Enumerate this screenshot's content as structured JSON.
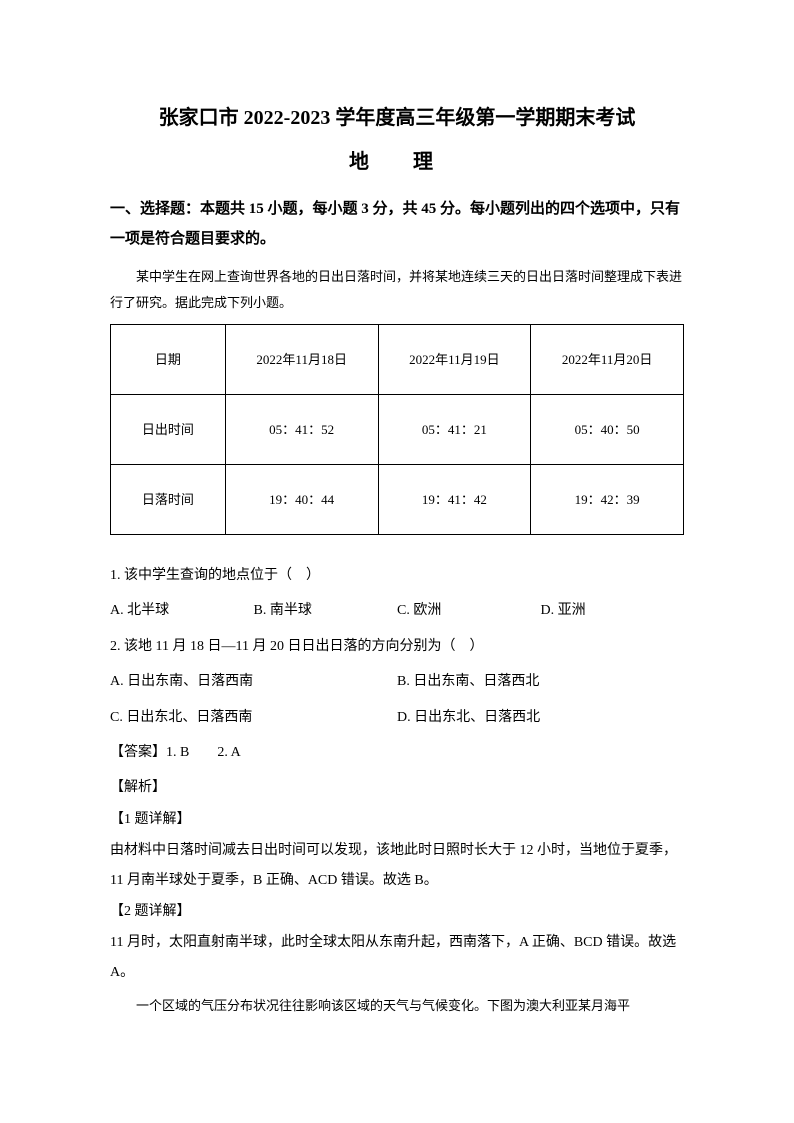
{
  "title": {
    "main": "张家口市 2022-2023 学年度高三年级第一学期期末考试",
    "subject": "地　理"
  },
  "section_heading": "一、选择题：本题共 15 小题，每小题 3 分，共 45 分。每小题列出的四个选项中，只有一项是符合题目要求的。",
  "context1": "某中学生在网上查询世界各地的日出日落时间，并将某地连续三天的日出日落时间整理成下表进行了研究。据此完成下列小题。",
  "table": {
    "header": {
      "label": "日期",
      "c1": "2022年11月18日",
      "c2": "2022年11月19日",
      "c3": "2022年11月20日"
    },
    "row1": {
      "label": "日出时间",
      "c1": "05：41：52",
      "c2": "05：41：21",
      "c3": "05：40：50"
    },
    "row2": {
      "label": "日落时间",
      "c1": "19：40：44",
      "c2": "19：41：42",
      "c3": "19：42：39"
    }
  },
  "q1": {
    "stem": "1. 该中学生查询的地点位于（　）",
    "A": "A. 北半球",
    "B": "B. 南半球",
    "C": "C. 欧洲",
    "D": "D. 亚洲"
  },
  "q2": {
    "stem": "2. 该地 11 月 18 日—11 月 20 日日出日落的方向分别为（　）",
    "A": "A. 日出东南、日落西南",
    "B": "B. 日出东南、日落西北",
    "C": "C. 日出东北、日落西南",
    "D": "D. 日出东北、日落西北"
  },
  "answers": "【答案】1. B　　2. A",
  "analysis": {
    "header": "【解析】",
    "q1h": "【1 题详解】",
    "q1t": "由材料中日落时间减去日出时间可以发现，该地此时日照时长大于 12 小时，当地位于夏季，11 月南半球处于夏季，B 正确、ACD 错误。故选 B。",
    "q2h": "【2 题详解】",
    "q2t": "11 月时，太阳直射南半球，此时全球太阳从东南升起，西南落下，A 正确、BCD 错误。故选 A。"
  },
  "context2": "一个区域的气压分布状况往往影响该区域的天气与气候变化。下图为澳大利亚某月海平"
}
